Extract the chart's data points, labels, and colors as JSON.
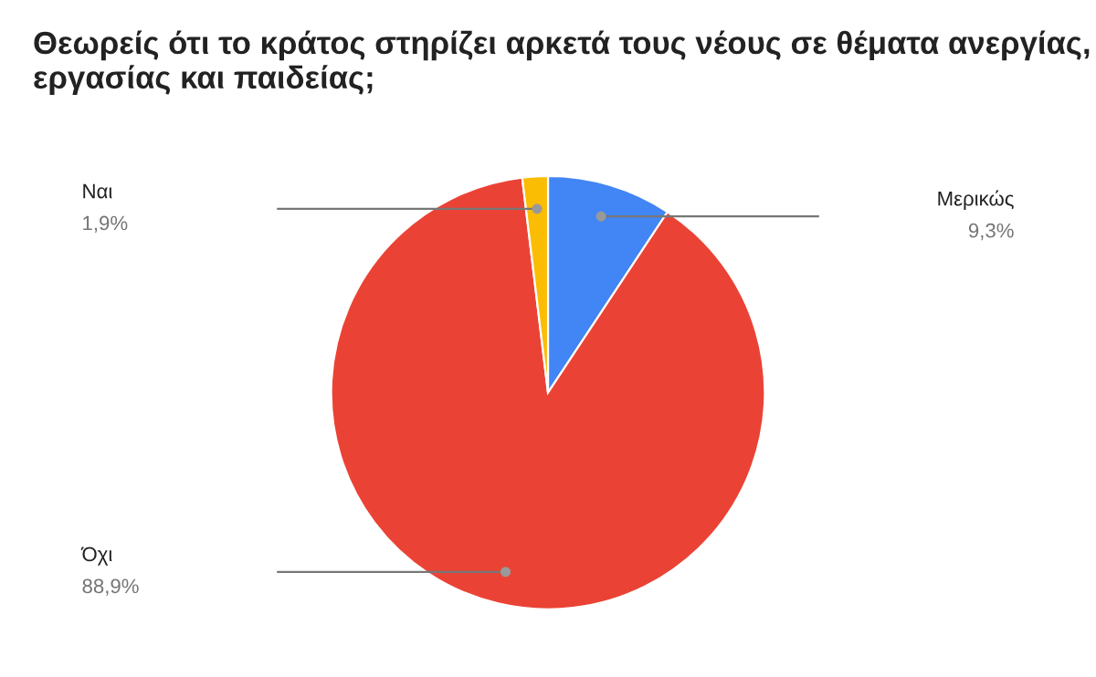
{
  "chart_data": {
    "type": "pie",
    "title": "Θεωρείς ότι το κράτος στηρίζει αρκετά τους νέους σε θέματα ανεργίας, εργασίας και παιδείας;",
    "categories": [
      "Μερικώς",
      "Όχι",
      "Ναι"
    ],
    "values": [
      9.3,
      88.9,
      1.9
    ],
    "colors": [
      "#4285f4",
      "#ea4335",
      "#fbbc04"
    ],
    "value_labels": [
      "9,3%",
      "88,9%",
      "1,9%"
    ]
  }
}
